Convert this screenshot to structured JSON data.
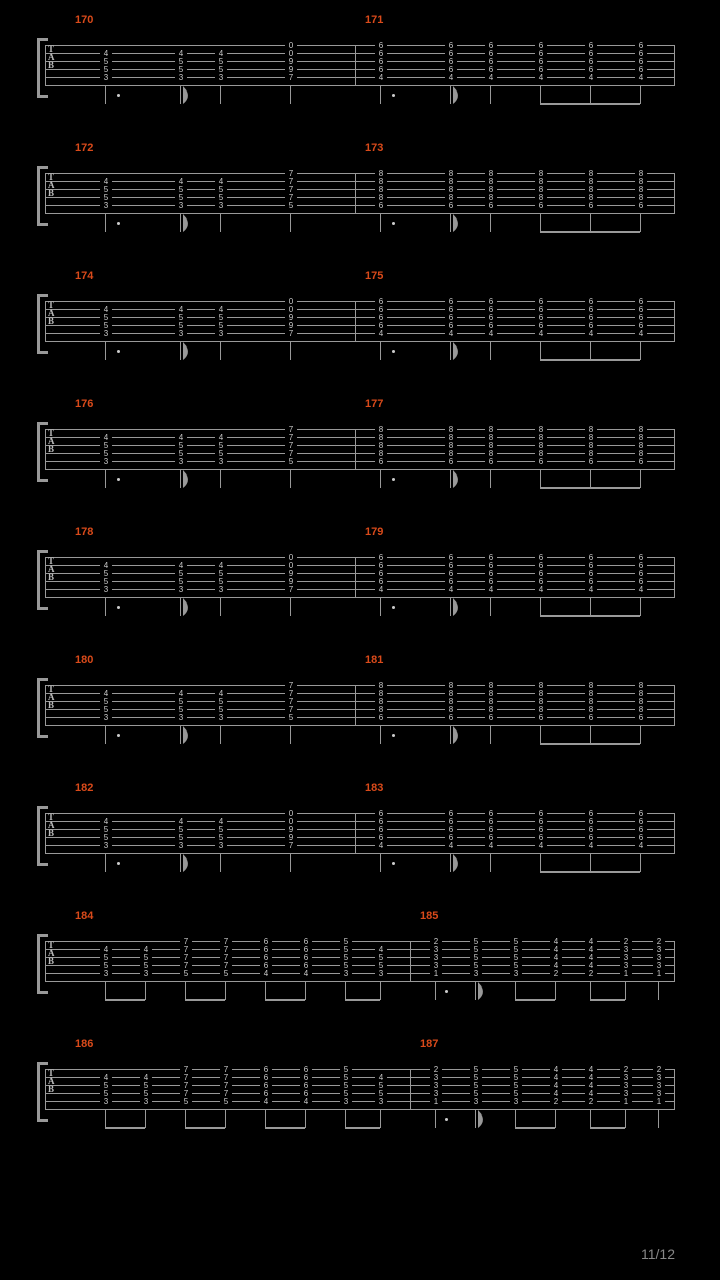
{
  "page_number": "11/12",
  "colors": {
    "background": "#000000",
    "staff_line": "#999999",
    "bar_number": "#d94a1a",
    "fret_text": "#cccccc",
    "page_text": "#888888"
  },
  "layout": {
    "staff_width": 630,
    "staff_left_margin": 20,
    "left_barnum_x": 30,
    "right_barnum_x": 320,
    "right_barnum_x_sys8": 375,
    "right_barnum_x_sys9": 375
  },
  "chordsA": {
    "c1": [
      "",
      "4",
      "5",
      "5",
      "3",
      ""
    ],
    "c2": [
      "",
      "4",
      "5",
      "5",
      "3",
      ""
    ],
    "c3": [
      "",
      "4",
      "5",
      "5",
      "3",
      ""
    ],
    "c4": [
      "0",
      "0",
      "9",
      "9",
      "7",
      ""
    ]
  },
  "chordsB": {
    "c1": [
      "6",
      "6",
      "6",
      "6",
      "4",
      ""
    ],
    "c2": [
      "6",
      "6",
      "6",
      "6",
      "4",
      ""
    ],
    "c3": [
      "6",
      "6",
      "6",
      "6",
      "4",
      ""
    ],
    "c4": [
      "6",
      "6",
      "6",
      "6",
      "4",
      ""
    ],
    "c5": [
      "6",
      "6",
      "6",
      "6",
      "4",
      ""
    ],
    "c6": [
      "6",
      "6",
      "6",
      "6",
      "4",
      ""
    ]
  },
  "chordsC": {
    "c1": [
      "",
      "4",
      "5",
      "5",
      "3",
      ""
    ],
    "c2": [
      "",
      "4",
      "5",
      "5",
      "3",
      ""
    ],
    "c3": [
      "",
      "4",
      "5",
      "5",
      "3",
      ""
    ],
    "c4": [
      "7",
      "7",
      "7",
      "7",
      "5",
      ""
    ]
  },
  "chordsD": {
    "c1": [
      "8",
      "8",
      "8",
      "8",
      "6",
      ""
    ],
    "c2": [
      "8",
      "8",
      "8",
      "8",
      "6",
      ""
    ],
    "c3": [
      "8",
      "8",
      "8",
      "8",
      "6",
      ""
    ],
    "c4": [
      "8",
      "8",
      "8",
      "8",
      "6",
      ""
    ],
    "c5": [
      "8",
      "8",
      "8",
      "8",
      "6",
      ""
    ],
    "c6": [
      "8",
      "8",
      "8",
      "8",
      "6",
      ""
    ]
  },
  "sys8_left": {
    "c1": [
      "",
      "4",
      "5",
      "5",
      "3",
      ""
    ],
    "c2": [
      "",
      "4",
      "5",
      "5",
      "3",
      ""
    ],
    "c3": [
      "7",
      "7",
      "7",
      "7",
      "5",
      ""
    ],
    "c4": [
      "7",
      "7",
      "7",
      "7",
      "5",
      ""
    ],
    "c5": [
      "6",
      "6",
      "6",
      "6",
      "4",
      ""
    ],
    "c6": [
      "6",
      "6",
      "6",
      "6",
      "4",
      ""
    ],
    "c7": [
      "5",
      "5",
      "5",
      "5",
      "3",
      ""
    ],
    "c8": [
      "",
      "4",
      "5",
      "5",
      "3",
      ""
    ]
  },
  "sys8_right": {
    "c1": [
      "2",
      "3",
      "3",
      "3",
      "1",
      ""
    ],
    "c2": [
      "5",
      "5",
      "5",
      "5",
      "3",
      ""
    ],
    "c3": [
      "5",
      "5",
      "5",
      "5",
      "3",
      ""
    ],
    "c4": [
      "4",
      "4",
      "4",
      "4",
      "2",
      ""
    ],
    "c5": [
      "4",
      "4",
      "4",
      "4",
      "2",
      ""
    ],
    "c6": [
      "2",
      "3",
      "3",
      "3",
      "1",
      ""
    ],
    "c7": [
      "2",
      "3",
      "3",
      "3",
      "1",
      ""
    ]
  },
  "sys9_left": {
    "c1": [
      "",
      "4",
      "5",
      "5",
      "3",
      ""
    ],
    "c2": [
      "",
      "4",
      "5",
      "5",
      "3",
      ""
    ],
    "c3": [
      "7",
      "7",
      "7",
      "7",
      "5",
      ""
    ],
    "c4": [
      "7",
      "7",
      "7",
      "7",
      "5",
      ""
    ],
    "c5": [
      "6",
      "6",
      "6",
      "6",
      "4",
      ""
    ],
    "c6": [
      "6",
      "6",
      "6",
      "6",
      "4",
      ""
    ],
    "c7": [
      "5",
      "5",
      "5",
      "5",
      "3",
      ""
    ],
    "c8": [
      "",
      "4",
      "5",
      "5",
      "3",
      ""
    ]
  },
  "sys9_right": {
    "c1": [
      "2",
      "3",
      "3",
      "3",
      "1",
      ""
    ],
    "c2": [
      "5",
      "5",
      "5",
      "5",
      "3",
      ""
    ],
    "c3": [
      "5",
      "5",
      "5",
      "5",
      "3",
      ""
    ],
    "c4": [
      "4",
      "4",
      "4",
      "4",
      "2",
      ""
    ],
    "c5": [
      "4",
      "4",
      "4",
      "4",
      "2",
      ""
    ],
    "c6": [
      "2",
      "3",
      "3",
      "3",
      "1",
      ""
    ],
    "c7": [
      "2",
      "3",
      "3",
      "3",
      "1",
      ""
    ]
  },
  "systems": [
    {
      "bars": [
        "170",
        "171"
      ],
      "type": "AB"
    },
    {
      "bars": [
        "172",
        "173"
      ],
      "type": "CD"
    },
    {
      "bars": [
        "174",
        "175"
      ],
      "type": "AB"
    },
    {
      "bars": [
        "176",
        "177"
      ],
      "type": "CD"
    },
    {
      "bars": [
        "178",
        "179"
      ],
      "type": "AB"
    },
    {
      "bars": [
        "180",
        "181"
      ],
      "type": "CD"
    },
    {
      "bars": [
        "182",
        "183"
      ],
      "type": "AB"
    },
    {
      "bars": [
        "184",
        "185"
      ],
      "type": "S8"
    },
    {
      "bars": [
        "186",
        "187"
      ],
      "type": "S9"
    }
  ],
  "positions_AB": {
    "leftBarEnd": 310,
    "left_cols": [
      55,
      130,
      170,
      240
    ],
    "left_stems": [
      60,
      135,
      175,
      245
    ],
    "left_dot": 72,
    "left_flag": 138,
    "right_cols": [
      330,
      400,
      440,
      490,
      540,
      590
    ],
    "right_stems": [
      335,
      405,
      445,
      495,
      545,
      595
    ],
    "right_dot": 347,
    "right_flag": 408,
    "right_beam": [
      495,
      595
    ]
  },
  "positions_CD": {
    "leftBarEnd": 310,
    "left_cols": [
      55,
      130,
      170,
      240
    ],
    "left_stems": [
      60,
      135,
      175,
      245
    ],
    "left_dot": 72,
    "left_flag": 138,
    "right_cols": [
      330,
      400,
      440,
      490,
      540,
      590
    ],
    "right_stems": [
      335,
      405,
      445,
      495,
      545,
      595
    ],
    "right_dot": 347,
    "right_flag": 408,
    "right_beam": [
      495,
      595
    ]
  },
  "positions_S8": {
    "leftBarEnd": 365,
    "left_cols": [
      55,
      95,
      135,
      175,
      215,
      255,
      295,
      330
    ],
    "left_stems": [
      60,
      100,
      140,
      180,
      220,
      260,
      300,
      335
    ],
    "left_beams": [
      [
        60,
        100
      ],
      [
        140,
        180
      ],
      [
        220,
        260
      ],
      [
        300,
        335
      ]
    ],
    "right_cols": [
      385,
      425,
      465,
      505,
      540,
      575,
      608
    ],
    "right_stems": [
      390,
      430,
      470,
      510,
      545,
      580,
      613
    ],
    "right_dot": 400,
    "right_flag": 433,
    "right_beams": [
      [
        470,
        510
      ],
      [
        545,
        580
      ]
    ]
  },
  "positions_S9": {
    "leftBarEnd": 365,
    "left_cols": [
      55,
      95,
      135,
      175,
      215,
      255,
      295,
      330
    ],
    "left_stems": [
      60,
      100,
      140,
      180,
      220,
      260,
      300,
      335
    ],
    "left_beams": [
      [
        60,
        100
      ],
      [
        140,
        180
      ],
      [
        220,
        260
      ],
      [
        300,
        335
      ]
    ],
    "right_cols": [
      385,
      425,
      465,
      505,
      540,
      575,
      608
    ],
    "right_stems": [
      390,
      430,
      470,
      510,
      545,
      580,
      613
    ],
    "right_dot": 400,
    "right_flag": 433,
    "right_beams": [
      [
        470,
        510
      ],
      [
        545,
        580
      ]
    ]
  }
}
